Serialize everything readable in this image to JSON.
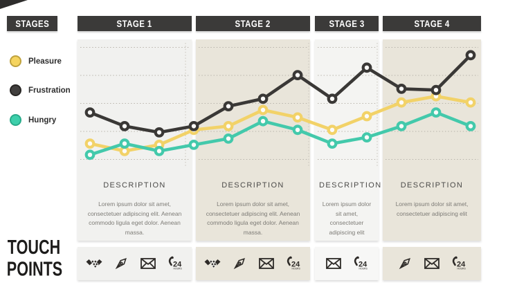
{
  "header": {
    "stages_label": "STAGES"
  },
  "touch_points": {
    "line1": "TOUCH",
    "line2": "POINTS"
  },
  "legend": [
    {
      "label": "Pleasure",
      "color": "#f5d45f",
      "border": "#bfa23e"
    },
    {
      "label": "Frustration",
      "color": "#413f3e",
      "border": "#272523"
    },
    {
      "label": "Hungry",
      "color": "#3ecfab",
      "border": "#29ab8a"
    }
  ],
  "stages": [
    {
      "label": "STAGE 1",
      "description_title": "DESCRIPTION",
      "description": "Lorem ipsum dolor sit amet, consectetuer adipiscing elit. Aenean commodo ligula eget dolor. Aenean massa.",
      "touchpoints": [
        "handshake-icon",
        "pen-icon",
        "envelope-icon",
        "phone-24-icon"
      ]
    },
    {
      "label": "STAGE 2",
      "description_title": "DESCRIPTION",
      "description": "Lorem ipsum dolor sit amet, consectetuer adipiscing elit. Aenean commodo ligula eget dolor. Aenean massa.",
      "touchpoints": [
        "handshake-icon",
        "pen-icon",
        "envelope-icon",
        "phone-24-icon"
      ]
    },
    {
      "label": "STAGE 3",
      "description_title": "DESCRIPTION",
      "description": "Lorem ipsum dolor sit amet, consectetuer adipiscing elit",
      "touchpoints": [
        "envelope-icon",
        "phone-24-icon"
      ]
    },
    {
      "label": "STAGE 4",
      "description_title": "DESCRIPTION",
      "description": "Lorem ipsum dolor sit amet, consectetuer adipiscing elit",
      "touchpoints": [
        "pen-icon",
        "envelope-icon",
        "phone-24-icon"
      ]
    }
  ],
  "colors": {
    "header_bar": "#3b3a39",
    "column_gray": "#f1f1ef",
    "column_beige": "#e9e5da",
    "gridline": "#b8b4ab"
  },
  "chart_data": {
    "type": "line",
    "title": "Customer journey emotion lines across stages",
    "x": [
      1,
      2,
      3,
      4,
      5,
      6,
      7,
      8,
      9,
      10,
      11,
      12
    ],
    "xlabel": "",
    "ylabel": "",
    "ylim": [
      0,
      100
    ],
    "grid": "horizontal-dotted",
    "legend_position": "left",
    "series": [
      {
        "name": "Pleasure",
        "color": "#f2d268",
        "values": [
          18,
          12,
          17,
          29,
          32,
          45,
          39,
          29,
          40,
          51,
          56,
          51
        ]
      },
      {
        "name": "Frustration",
        "color": "#3a3836",
        "values": [
          43,
          32,
          27,
          32,
          48,
          54,
          73,
          54,
          79,
          62,
          61,
          89
        ]
      },
      {
        "name": "Hungry",
        "color": "#43c9ab",
        "values": [
          9,
          18,
          12,
          17,
          22,
          36,
          29,
          18,
          23,
          32,
          43,
          32
        ]
      }
    ]
  }
}
